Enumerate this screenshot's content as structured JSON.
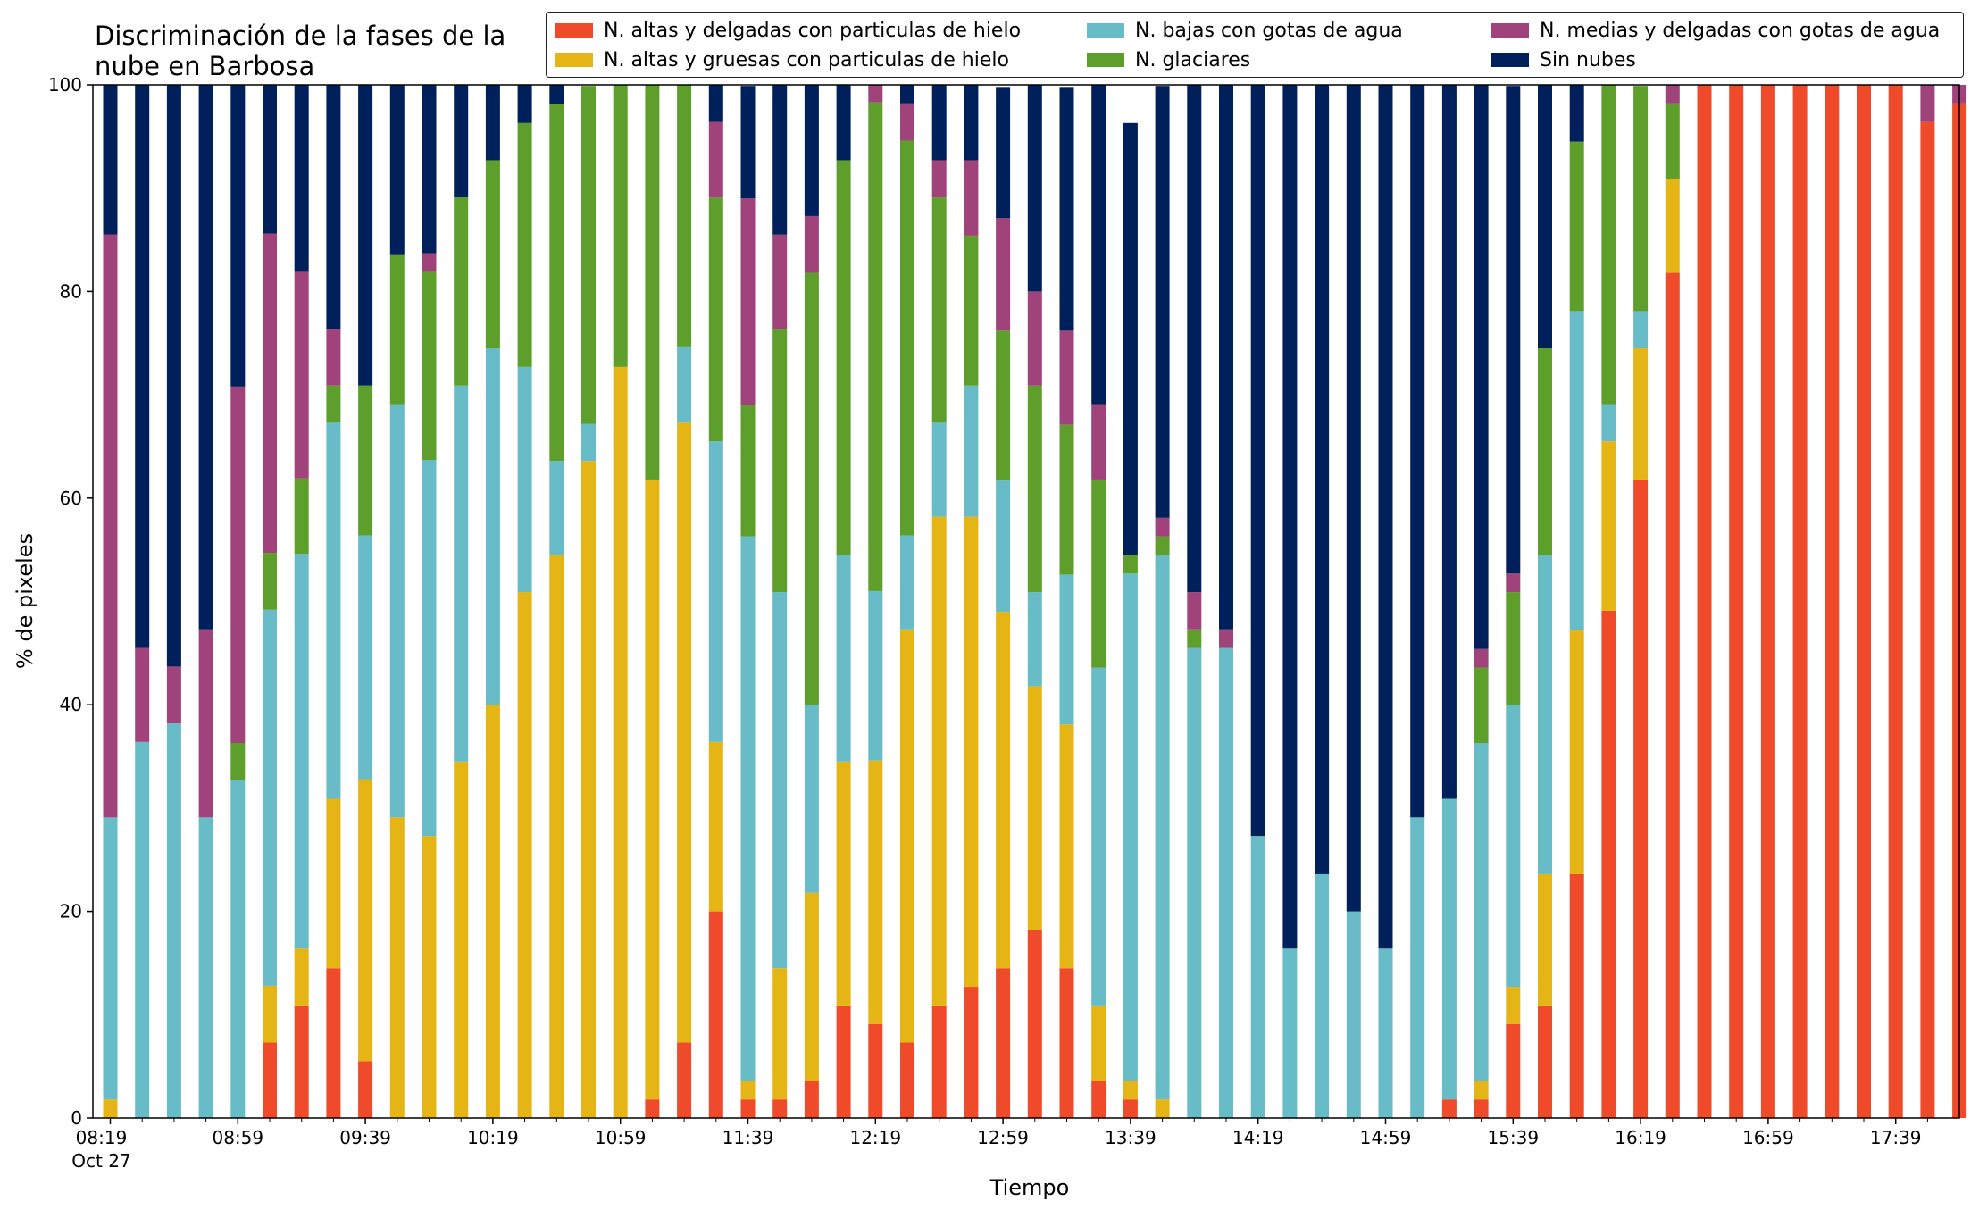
{
  "chart_data": {
    "type": "bar",
    "stacked": true,
    "title": "Discriminación de la fases de la\nnube en Barbosa",
    "xlabel": "Tiempo",
    "ylabel": "% de pixeles",
    "ylim": [
      0,
      100
    ],
    "yticks": [
      "0",
      "20",
      "40",
      "60",
      "80",
      "100"
    ],
    "xticks": [
      {
        "index": 0,
        "label": "08:19",
        "sub": "Oct 27"
      },
      {
        "index": 4,
        "label": "08:59"
      },
      {
        "index": 8,
        "label": "09:39"
      },
      {
        "index": 12,
        "label": "10:19"
      },
      {
        "index": 16,
        "label": "10:59"
      },
      {
        "index": 20,
        "label": "11:39"
      },
      {
        "index": 24,
        "label": "12:19"
      },
      {
        "index": 28,
        "label": "12:59"
      },
      {
        "index": 32,
        "label": "13:39"
      },
      {
        "index": 36,
        "label": "14:19"
      },
      {
        "index": 40,
        "label": "14:59"
      },
      {
        "index": 44,
        "label": "15:39"
      },
      {
        "index": 48,
        "label": "16:19"
      },
      {
        "index": 52,
        "label": "16:59"
      },
      {
        "index": 56,
        "label": "17:39"
      }
    ],
    "grid": false,
    "legend_position": "top-right",
    "series": [
      {
        "name": "N. altas y delgadas con particulas de hielo",
        "color": "#ef4a2a",
        "values": [
          0,
          0,
          0,
          0,
          0,
          7.3,
          10.9,
          14.5,
          5.5,
          0,
          0,
          0,
          0,
          0,
          0,
          0,
          0,
          1.8,
          7.3,
          20,
          1.8,
          1.8,
          3.6,
          10.9,
          9.1,
          7.3,
          10.9,
          12.7,
          14.5,
          18.2,
          14.5,
          3.6,
          1.8,
          0,
          0,
          0,
          0,
          0,
          0,
          0,
          0,
          0,
          1.8,
          1.8,
          9.1,
          10.9,
          23.6,
          49.1,
          61.8,
          81.8,
          100,
          100,
          100,
          100,
          100,
          100,
          100,
          96.4,
          98.2
        ]
      },
      {
        "name": "N. altas y gruesas con particulas de hielo",
        "color": "#e5b516",
        "values": [
          1.8,
          0,
          0,
          0,
          0,
          5.5,
          5.5,
          16.4,
          27.3,
          29.1,
          27.3,
          34.5,
          40,
          50.9,
          54.5,
          63.6,
          72.7,
          60,
          60,
          16.4,
          1.8,
          12.7,
          18.2,
          23.6,
          25.5,
          40,
          47.3,
          45.5,
          34.5,
          23.6,
          23.6,
          7.3,
          1.8,
          1.8,
          0,
          0,
          0,
          0,
          0,
          0,
          0,
          0,
          0,
          1.8,
          3.6,
          12.7,
          23.6,
          16.4,
          12.7,
          9.1,
          0,
          0,
          0,
          0,
          0,
          0,
          0,
          0,
          0
        ]
      },
      {
        "name": "N. bajas con gotas de agua",
        "color": "#67bcc8",
        "values": [
          27.3,
          36.4,
          38.2,
          29.1,
          32.7,
          36.4,
          38.2,
          36.4,
          23.6,
          40,
          36.4,
          36.4,
          34.5,
          21.8,
          9.1,
          3.6,
          0,
          0,
          7.3,
          29.1,
          52.7,
          36.4,
          18.2,
          20,
          16.4,
          9.1,
          9.1,
          12.7,
          12.7,
          9.1,
          14.5,
          32.7,
          49.1,
          52.7,
          45.5,
          45.5,
          27.3,
          16.4,
          23.6,
          20,
          16.4,
          29.1,
          29.1,
          32.7,
          27.3,
          30.9,
          30.9,
          3.6,
          3.6,
          0,
          0,
          0,
          0,
          0,
          0,
          0,
          0,
          0,
          0
        ]
      },
      {
        "name": "N. glaciares",
        "color": "#5d9f2a",
        "values": [
          0,
          0,
          0,
          0,
          3.6,
          5.5,
          7.3,
          3.6,
          14.5,
          14.5,
          18.2,
          18.2,
          18.2,
          23.6,
          34.5,
          32.7,
          27.3,
          38.2,
          25.5,
          23.6,
          12.7,
          25.5,
          41.8,
          38.2,
          47.3,
          38.2,
          21.8,
          14.5,
          14.5,
          20,
          14.5,
          18.2,
          1.8,
          1.8,
          1.8,
          0,
          0,
          0,
          0,
          0,
          0,
          0,
          0,
          7.3,
          10.9,
          20,
          16.4,
          30.9,
          21.8,
          7.3,
          0,
          0,
          0,
          0,
          0,
          0,
          0,
          0,
          0
        ]
      },
      {
        "name": "N. medias y delgadas con gotas de agua",
        "color": "#a0437a",
        "values": [
          56.4,
          9.1,
          5.5,
          18.2,
          34.5,
          30.9,
          20,
          5.5,
          0,
          0,
          1.8,
          0,
          0,
          0,
          0,
          0,
          0,
          0,
          0,
          7.3,
          20,
          9.1,
          5.5,
          0,
          1.8,
          3.6,
          3.6,
          7.3,
          10.9,
          9.1,
          9.1,
          7.3,
          0,
          1.8,
          3.6,
          1.8,
          0,
          0,
          0,
          0,
          0,
          0,
          0,
          1.8,
          1.8,
          0,
          0,
          0,
          0,
          1.8,
          0,
          0,
          0,
          0,
          0,
          0,
          0,
          3.6,
          1.8
        ]
      },
      {
        "name": "Sin nubes",
        "color": "#00205b",
        "values": [
          14.5,
          54.5,
          56.3,
          52.7,
          29.2,
          14.5,
          18.1,
          23.6,
          29.1,
          16.4,
          16.3,
          10.9,
          7.3,
          3.7,
          1.9,
          0,
          0,
          0,
          3.6,
          10.9,
          10.9,
          14.5,
          12.7,
          7.3,
          0,
          1.8,
          7.3,
          7.3,
          12.7,
          20,
          23.6,
          30.9,
          41.8,
          41.8,
          49.1,
          52.7,
          72.7,
          83.6,
          76.4,
          80,
          83.6,
          70.9,
          69.1,
          54.6,
          47.2,
          25.5,
          5.5,
          0,
          0,
          0,
          0,
          0,
          0,
          0,
          0,
          0,
          0,
          0,
          0
        ]
      }
    ]
  }
}
